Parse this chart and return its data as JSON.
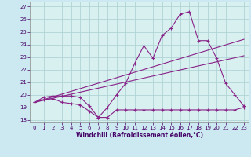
{
  "bg_color": "#cce8f0",
  "grid_color": "#b0d4d4",
  "line_color": "#882288",
  "plot_bg": "#d8f0f0",
  "xlim": [
    -0.5,
    23.5
  ],
  "ylim": [
    17.8,
    27.4
  ],
  "yticks": [
    18,
    19,
    20,
    21,
    22,
    23,
    24,
    25,
    26,
    27
  ],
  "xticks": [
    0,
    1,
    2,
    3,
    4,
    5,
    6,
    7,
    8,
    9,
    10,
    11,
    12,
    13,
    14,
    15,
    16,
    17,
    18,
    19,
    20,
    21,
    22,
    23
  ],
  "xlabel": "Windchill (Refroidissement éolien,°C)",
  "line1_x": [
    0,
    1,
    2,
    3,
    4,
    5,
    6,
    7,
    8,
    9,
    10,
    11,
    12,
    13,
    14,
    15,
    16,
    17,
    18,
    19,
    20,
    21,
    22,
    23
  ],
  "line1_y": [
    19.4,
    19.8,
    19.9,
    19.9,
    19.9,
    19.8,
    19.1,
    18.2,
    19.0,
    20.0,
    20.9,
    22.5,
    23.9,
    22.9,
    24.7,
    25.3,
    26.4,
    26.6,
    24.3,
    24.3,
    22.9,
    20.9,
    20.0,
    19.1
  ],
  "line2_x": [
    0,
    23
  ],
  "line2_y": [
    19.4,
    24.4
  ],
  "line3_x": [
    0,
    23
  ],
  "line3_y": [
    19.4,
    23.1
  ],
  "line4_x": [
    0,
    1,
    2,
    3,
    4,
    5,
    6,
    7,
    8,
    9,
    10,
    11,
    12,
    13,
    14,
    15,
    16,
    17,
    18,
    19,
    20,
    21,
    22,
    23
  ],
  "line4_y": [
    19.4,
    19.6,
    19.7,
    19.4,
    19.3,
    19.2,
    18.7,
    18.2,
    18.2,
    18.8,
    18.8,
    18.8,
    18.8,
    18.8,
    18.8,
    18.8,
    18.8,
    18.8,
    18.8,
    18.8,
    18.8,
    18.8,
    18.8,
    19.0
  ]
}
